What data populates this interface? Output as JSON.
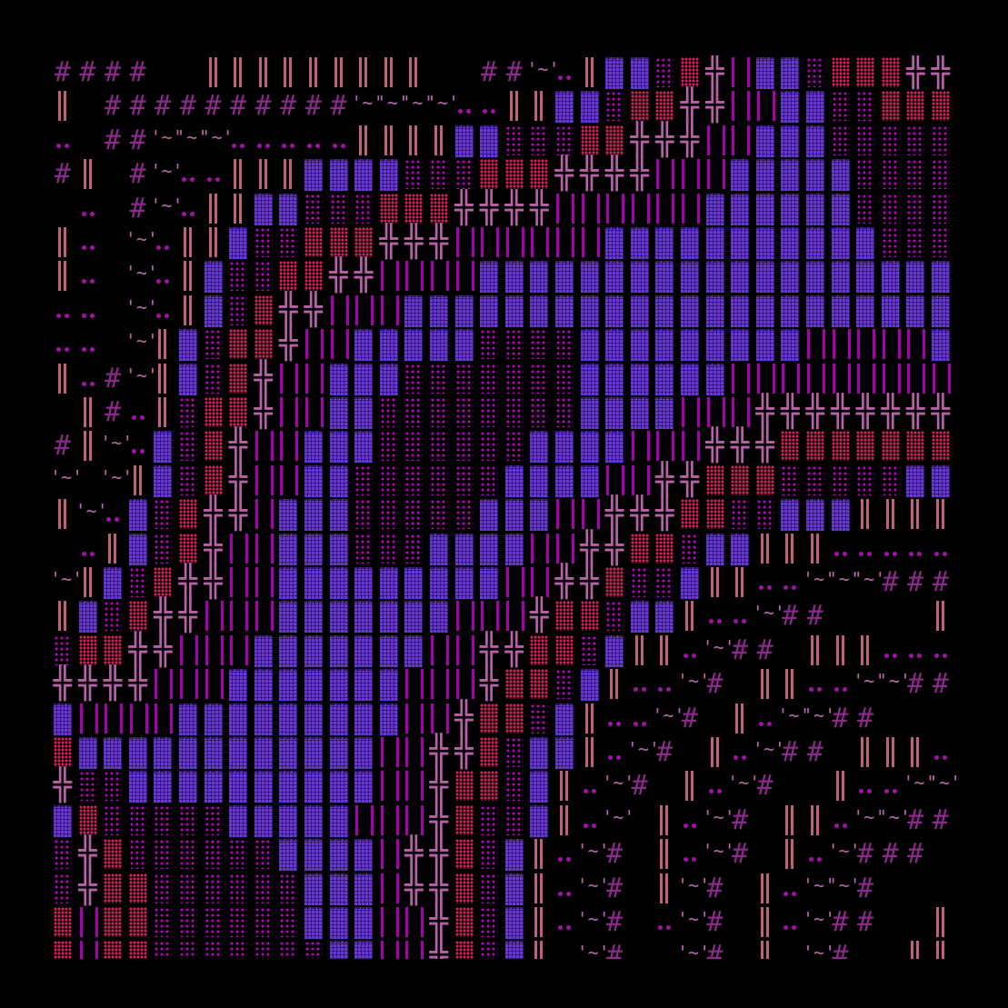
{
  "palette": {
    "hash": "#8b2a8b",
    "double_bar": "#c0607a",
    "tilde": "#b868a8",
    "dots": "#a410a8",
    "block": "#6a3ad8",
    "sparse": "#c000c8",
    "dense": "#d82060",
    "cross": "#b860a8",
    "bars": "#a800b0",
    "background": "#000000"
  },
  "glyphs": {
    "#": {
      "kind": "hash",
      "char": "#",
      "icon": "hash-glyph"
    },
    "H": {
      "kind": "double-bar",
      "icon": "double-bar-glyph"
    },
    "~": {
      "kind": "tilde",
      "char": "'~'",
      "icon": "tilde-glyph"
    },
    ".": {
      "kind": "dots",
      "icon": "dots-glyph"
    },
    "B": {
      "kind": "block",
      "icon": "dense-block-glyph"
    },
    "s": {
      "kind": "sparse",
      "icon": "sparse-dots-glyph"
    },
    "d": {
      "kind": "dense",
      "icon": "dense-dots-glyph"
    },
    "+": {
      "kind": "cross",
      "char": "╬",
      "icon": "cross-glyph"
    },
    "|": {
      "kind": "bars",
      "icon": "bars-glyph"
    }
  },
  "grid": {
    "rows": [
      "####  HHHHHHHHH  ##~.HBBsd+|BBsddd++",
      "H ##########~~~~..HHBBsdd++||BBssddd",
      ". ##~~~.....HHHHBBsssdd+++||BBBsssss",
      "#H #~..HHHBBBBsssddd++++|||BBBBBssss",
      " . #~.HHBBsssddd++++||||||BBBBBBssss",
      "H. ~.HHBssddd+++||||||BBBBBBBBBBBsss",
      "H. ~.HBssdd++||||BBBBBBBBBBBBBBBBBBB",
      ".. ~.HBsd++|||BBBBBBBBBBBBBBBBBBBBBB",
      ".. ~HBsdd+||BBBBBssssBBBBBBBBB|||||B",
      "H.#~HBsd+||BBBsssssssBBBBBB|||||||||",
      " H#.Hsdd+||BBssssssssBBBB|||++++++++",
      "#H~.Bsd+||BBBssssssBBBB|||+++ddddddd",
      "~ ~HBsd+||BBssssssBBBB||++dddsssssBB",
      "H~.Bsd++|BBBsssssBBB||+++ddssBBBHHHH",
      " .HBsd+||BBBsssBBBB||++ddsBBHHH.....",
      "~HBsd++||BBBBBBBBB||++dssBHH..~~~###",
      "HBsd++|||BBBBBBB|||+ddsBBH..~##    H",
      "sdd++|||BBBBBBB||++ddsBHH.~## HHH...",
      "++++|||BBBBBBB|||+ddsBH..~# HH..~~##",
      "B||||BBBBBBBBB||+ddsBH..~# H.~~##   ",
      "dBBBBBBBBBBBB||++dsBBH.~# H.~## HHH.",
      "+ssBBBBBBBBBB||+ddsBH.~# H.~#  H..~~",
      "BdsssssBBBBB|||+dssBH.~ H.~# HH.~~##",
      "s+dssssssBBBB|++dsBH.~# H.~# H.~### ",
      "s+ddssssssBBB|++dsBH.~# H~# H.~~#   ",
      "d|ddssssssBBB||+dsBH.~# .~# H.~##  H",
      "d|ddsssssssBB||+dsBH ~# .~# H ~#  HH"
    ]
  }
}
